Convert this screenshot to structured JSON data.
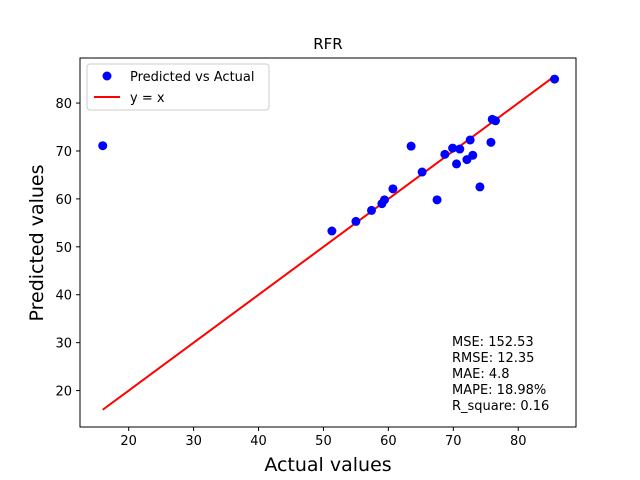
{
  "chart_data": {
    "type": "scatter",
    "title": "RFR",
    "xlabel": "Actual values",
    "ylabel": "Predicted values",
    "xlim": [
      12.5,
      88.9
    ],
    "ylim": [
      12.4,
      89.4
    ],
    "xticks": [
      20,
      30,
      40,
      50,
      60,
      70,
      80
    ],
    "yticks": [
      20,
      30,
      40,
      50,
      60,
      70,
      80
    ],
    "grid": false,
    "legend_position": "top-left",
    "series": [
      {
        "name": "Predicted vs Actual",
        "type": "scatter",
        "color": "#0000ff",
        "x": [
          16.0,
          51.3,
          55.0,
          57.4,
          59.0,
          59.4,
          60.7,
          63.5,
          65.2,
          67.5,
          68.7,
          69.9,
          70.5,
          71.0,
          72.1,
          72.6,
          73.0,
          74.1,
          75.8,
          76.0,
          76.5,
          85.6
        ],
        "y": [
          71.1,
          53.3,
          55.3,
          57.6,
          59.0,
          59.8,
          62.1,
          71.0,
          65.6,
          59.8,
          69.3,
          70.6,
          67.3,
          70.4,
          68.2,
          72.3,
          69.1,
          62.5,
          71.8,
          76.6,
          76.3,
          85.0
        ]
      },
      {
        "name": "y = x",
        "type": "line",
        "color": "#ff0000",
        "x": [
          16.0,
          85.6
        ],
        "y": [
          16.0,
          85.6
        ]
      }
    ],
    "annotations": [
      "MSE: 152.53",
      "RMSE: 12.35",
      "MAE: 4.8",
      "MAPE: 18.98%",
      "R_square: 0.16"
    ]
  }
}
